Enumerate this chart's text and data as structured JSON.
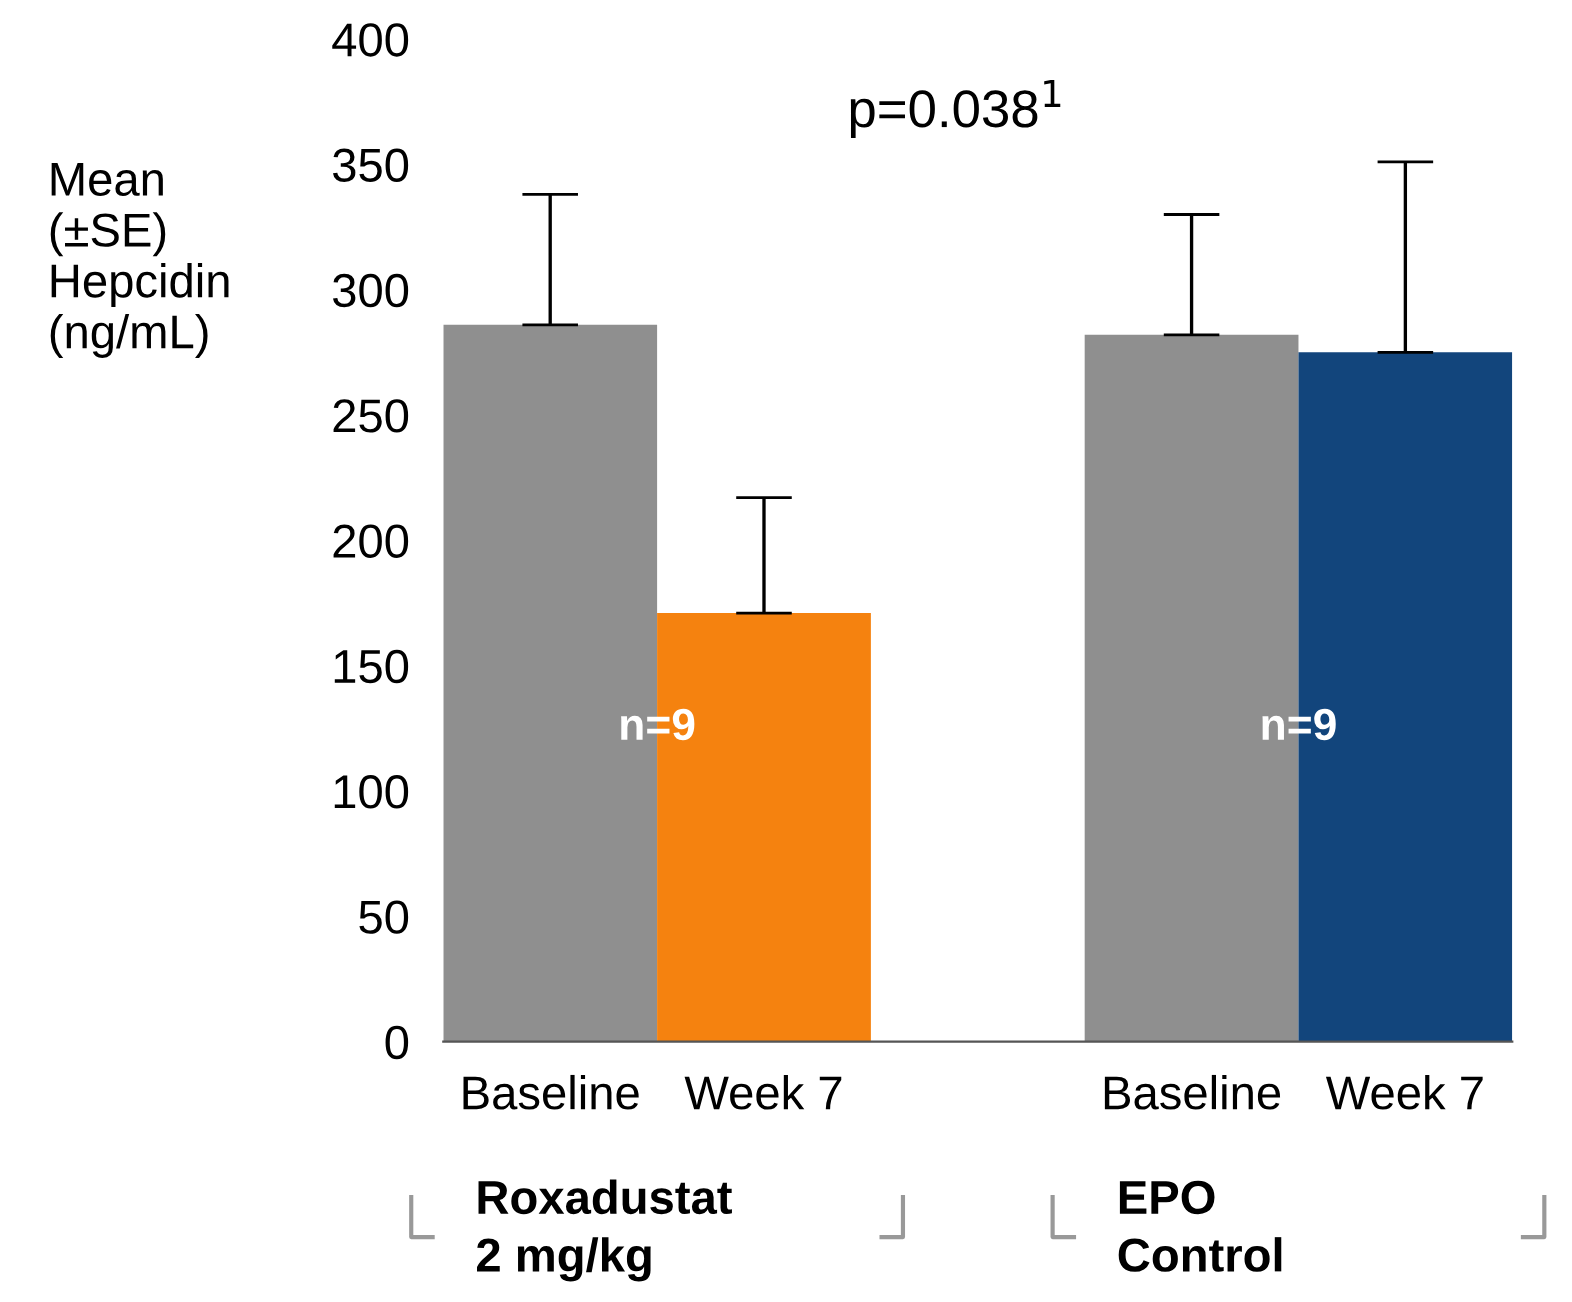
{
  "chart_data": {
    "type": "bar",
    "ylabel": "Mean\n(±SE)\nHepcidin\n(ng/mL)",
    "categories": [
      "Baseline",
      "Week 7",
      null,
      "Baseline",
      "Week 7"
    ],
    "values": [
      286,
      171,
      null,
      282,
      275
    ],
    "colors": [
      "#8f8f8f",
      "#f5820f",
      "#ffffff",
      "#8f8f8f",
      "#12457c"
    ],
    "errors": [
      [
        286,
        338
      ],
      [
        171,
        217
      ],
      null,
      [
        282,
        330
      ],
      [
        275,
        351
      ]
    ],
    "ylim": [
      0,
      400
    ],
    "yticks": [
      0,
      50,
      100,
      150,
      200,
      250,
      300,
      350,
      400
    ],
    "grid": false,
    "annotations": [
      "p=0.038$^{1}$",
      "n=9",
      "n=9",
      "Roxadustat\n2 mg/kg",
      "EPO\nControl"
    ]
  }
}
